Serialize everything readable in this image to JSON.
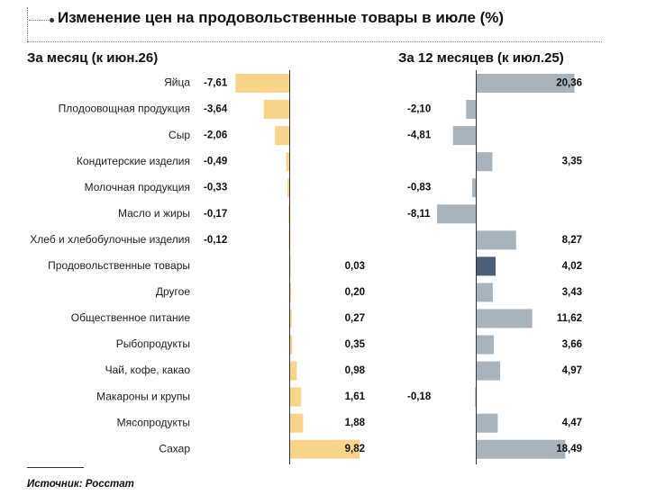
{
  "title": "Изменение цен на продовольственные товары в июле (%)",
  "source": "Источник: Росстат",
  "colors": {
    "month_bar": "#f7d48a",
    "year_bar": "#a9b3bc",
    "highlight_bar": "#4d5f76",
    "axis": "#333333"
  },
  "chart_data": [
    {
      "type": "bar",
      "orientation": "horizontal",
      "title": "За месяц (к июн.26)",
      "categories": [
        "Яйца",
        "Плодоовощная продукция",
        "Сыр",
        "Кондитерские изделия",
        "Молочная продукция",
        "Масло и жиры",
        "Хлеб и хлебобулочные изделия",
        "Продовольственные товары",
        "Другое",
        "Общественное питание",
        "Рыбопродукты",
        "Чай, кофе, какао",
        "Макароны и крупы",
        "Мясопродукты",
        "Сахар"
      ],
      "values": [
        -7.61,
        -3.64,
        -2.06,
        -0.49,
        -0.33,
        -0.17,
        -0.12,
        0.03,
        0.2,
        0.27,
        0.35,
        0.98,
        1.61,
        1.88,
        9.82
      ],
      "labels": [
        "-7,61",
        "-3,64",
        "-2,06",
        "-0,49",
        "-0,33",
        "-0,17",
        "-0,12",
        "0,03",
        "0,20",
        "0,27",
        "0,35",
        "0,98",
        "1,61",
        "1,88",
        "9,82"
      ]
    },
    {
      "type": "bar",
      "orientation": "horizontal",
      "title": "За 12 месяцев (к июл.25)",
      "categories": [
        "Яйца",
        "Плодоовощная продукция",
        "Сыр",
        "Кондитерские изделия",
        "Молочная продукция",
        "Масло и жиры",
        "Хлеб и хлебобулочные изделия",
        "Продовольственные товары",
        "Другое",
        "Общественное питание",
        "Рыбопродукты",
        "Чай, кофе, какао",
        "Макароны и крупы",
        "Мясопродукты",
        "Сахар"
      ],
      "values": [
        20.36,
        -2.1,
        -4.81,
        3.35,
        -0.83,
        -8.11,
        8.27,
        4.02,
        3.43,
        11.62,
        3.66,
        4.97,
        -0.18,
        4.47,
        18.49
      ],
      "labels": [
        "20,36",
        "-2,10",
        "-4,81",
        "3,35",
        "-0,83",
        "-8,11",
        "8,27",
        "4,02",
        "3,43",
        "11,62",
        "3,66",
        "4,97",
        "-0,18",
        "4,47",
        "18,49"
      ],
      "highlight_category": "Продовольственные товары"
    }
  ]
}
